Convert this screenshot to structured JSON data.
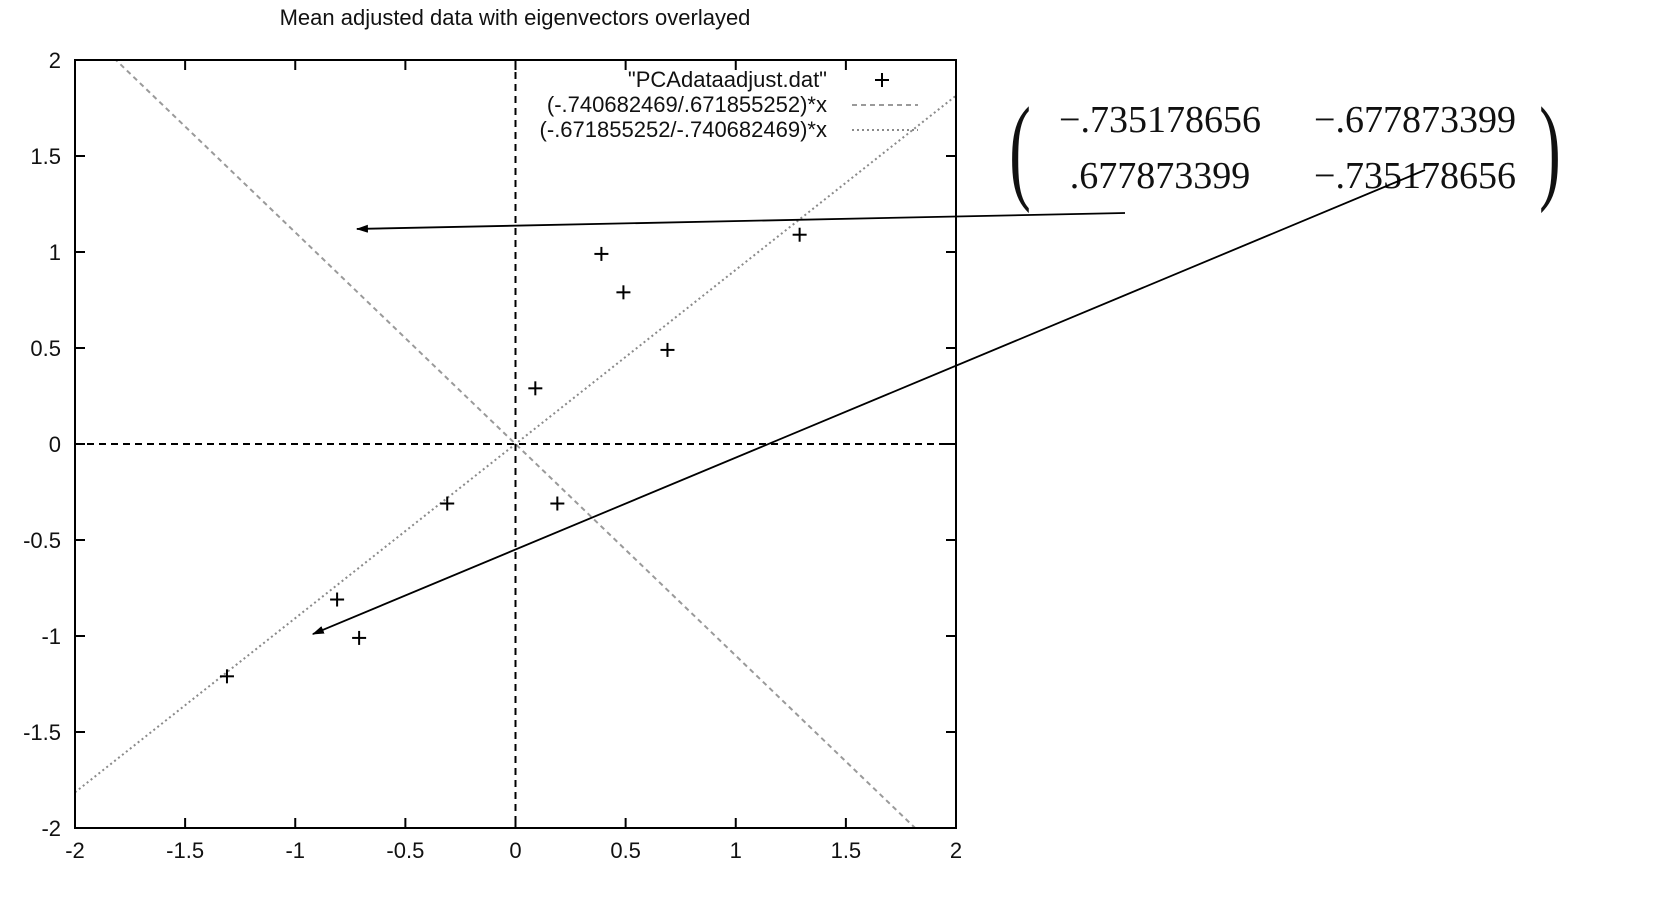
{
  "chart_data": {
    "type": "scatter",
    "title": "Mean adjusted data with eigenvectors overlayed",
    "xlabel": "",
    "ylabel": "",
    "xlim": [
      -2,
      2
    ],
    "ylim": [
      -2,
      2
    ],
    "xticks": [
      "-2",
      "-1.5",
      "-1",
      "-0.5",
      "0",
      "0.5",
      "1",
      "1.5",
      "2"
    ],
    "yticks": [
      "2",
      "1.5",
      "1",
      "0.5",
      "0",
      "-0.5",
      "-1",
      "-1.5",
      "-2"
    ],
    "grid": false,
    "legend_position": "top-right",
    "series": [
      {
        "name": "\"PCAdataadjust.dat\"",
        "marker": "+",
        "points": [
          {
            "x": -1.31,
            "y": -1.21
          },
          {
            "x": -0.81,
            "y": -0.81
          },
          {
            "x": -0.71,
            "y": -1.01
          },
          {
            "x": -0.31,
            "y": -0.31
          },
          {
            "x": 0.09,
            "y": 0.29
          },
          {
            "x": 0.19,
            "y": -0.31
          },
          {
            "x": 0.39,
            "y": 0.99
          },
          {
            "x": 0.49,
            "y": 0.79
          },
          {
            "x": 0.69,
            "y": 0.49
          },
          {
            "x": 1.29,
            "y": 1.09
          }
        ]
      },
      {
        "name": "(-.740682469/.671855252)*x",
        "type": "line",
        "slope": -1.1024,
        "color": "#9a9a9a"
      },
      {
        "name": "(-.671855252/-.740682469)*x",
        "type": "line",
        "slope": 0.9071,
        "color": "#8a8a8a"
      }
    ],
    "annotations": {
      "matrix": [
        [
          "−.735178656",
          "−.677873399"
        ],
        [
          ".677873399",
          "−.735178656"
        ]
      ],
      "arrows": [
        {
          "from_cell": "row1",
          "to": {
            "x": -0.72,
            "y": 1.12
          }
        },
        {
          "from_cell": "row2",
          "to": {
            "x": -0.92,
            "y": -0.99
          }
        }
      ]
    }
  }
}
